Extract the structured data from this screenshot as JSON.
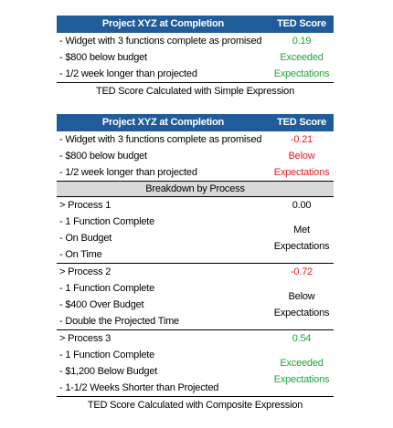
{
  "tables": [
    {
      "header": {
        "title": "Project XYZ at Completion",
        "score": "TED Score"
      },
      "summary": {
        "lines": [
          "- Widget with 3 functions complete as promised",
          "- $800 below budget",
          "- 1/2 week longer than projected"
        ],
        "score": "0.19",
        "rating": "Exceeded Expectations",
        "score_color": "#22a33a",
        "rating_color": "#22a33a"
      },
      "caption": "TED Score Calculated with Simple Expression"
    },
    {
      "header": {
        "title": "Project XYZ at Completion",
        "score": "TED Score"
      },
      "summary": {
        "lines": [
          "- Widget with 3 functions complete as promised",
          "- $800 below budget",
          "- 1/2 week longer than projected"
        ],
        "score": "-0.21",
        "rating": "Below Expectations",
        "score_color": "#e02020",
        "rating_color": "#e02020"
      },
      "breakdown": {
        "title": "Breakdown by Process",
        "processes": [
          {
            "lines": [
              "> Process 1",
              "- 1 Function Complete",
              "- On Budget",
              "- On Time"
            ],
            "score": "0.00",
            "rating": "Met Expectations",
            "score_color": "#000000",
            "rating_color": "#000000"
          },
          {
            "lines": [
              "> Process 2",
              "- 1 Function Complete",
              "- $400 Over Budget",
              "- Double the Projected Time"
            ],
            "score": "-0.72",
            "rating": "Below Expectations",
            "score_color": "#e02020",
            "rating_color": "#000000"
          },
          {
            "lines": [
              "> Process 3",
              "- 1 Function Complete",
              "- $1,200 Below Budget",
              "- 1-1/2 Weeks Shorter than Projected"
            ],
            "score": "0.54",
            "rating": "Exceeded Expectations",
            "score_color": "#22a33a",
            "rating_color": "#22a33a"
          }
        ]
      },
      "caption": "TED Score Calculated with Composite Expression"
    }
  ]
}
